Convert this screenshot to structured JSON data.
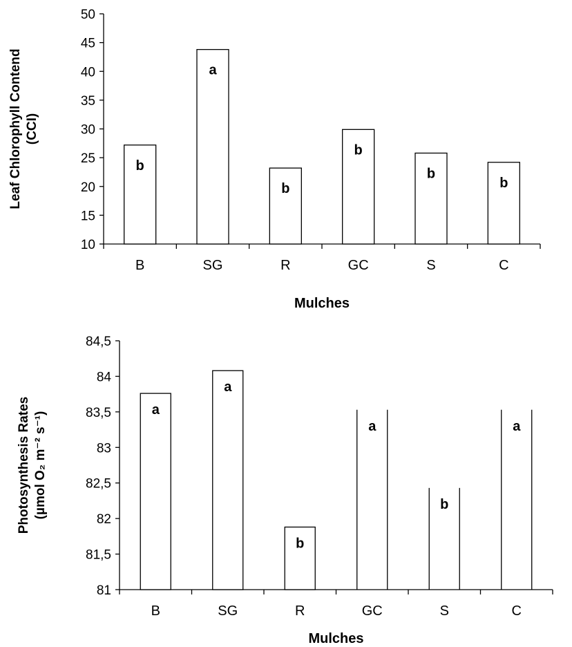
{
  "chart_data": [
    {
      "type": "bar",
      "categories": [
        "B",
        "SG",
        "R",
        "GC",
        "S",
        "C"
      ],
      "values": [
        27.2,
        43.8,
        23.2,
        29.9,
        25.8,
        24.2
      ],
      "significance": [
        "b",
        "a",
        "b",
        "b",
        "b",
        "b"
      ],
      "ylabel_lines": [
        "Leaf Chlorophyll Contend",
        "(CCI)"
      ],
      "xlabel": "Mulches",
      "ylim": [
        10,
        50
      ],
      "yticks": [
        "10",
        "15",
        "20",
        "25",
        "30",
        "35",
        "40",
        "45",
        "50"
      ],
      "grid": false
    },
    {
      "type": "bar",
      "categories": [
        "B",
        "SG",
        "R",
        "GC",
        "S",
        "C"
      ],
      "values": [
        83.76,
        84.08,
        81.88,
        83.53,
        82.43,
        83.53
      ],
      "significance": [
        "a",
        "a",
        "b",
        "a",
        "b",
        "a"
      ],
      "ylabel_lines": [
        "Photosynthesis Rates",
        "(µmol O₂ m⁻² s⁻¹)"
      ],
      "xlabel": "Mulches",
      "ylim": [
        81,
        84.5
      ],
      "yticks": [
        "81",
        "81,5",
        "82",
        "82,5",
        "83",
        "83,5",
        "84",
        "84,5"
      ],
      "grid": false
    }
  ]
}
